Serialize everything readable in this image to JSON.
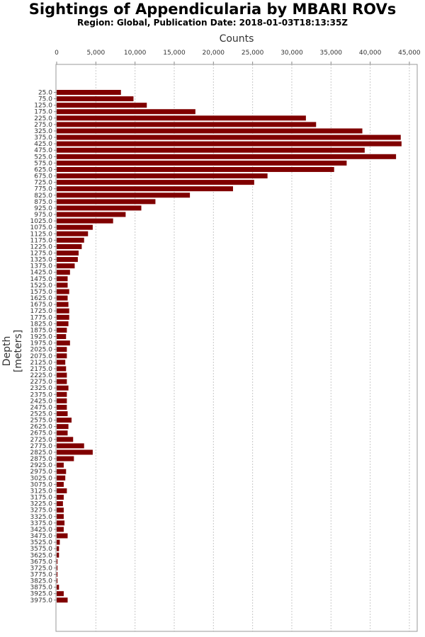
{
  "chart_data": {
    "type": "bar",
    "orientation": "horizontal",
    "title": "Sightings of Appendicularia by MBARI ROVs",
    "subtitle": "Region: Global, Publication Date: 2018-01-03T18:13:35Z",
    "xlabel": "Counts",
    "ylabel": "Depth [meters]",
    "xlim": [
      0,
      46000
    ],
    "x_ticks": [
      0,
      5000,
      10000,
      15000,
      20000,
      25000,
      30000,
      35000,
      40000,
      45000
    ],
    "x_tick_labels": [
      "0",
      "5,000",
      "10,000",
      "15,000",
      "20,000",
      "25,000",
      "30,000",
      "35,000",
      "40,000",
      "45,000"
    ],
    "x_axis_position": "top",
    "grid": "vertical dashed",
    "bar_color": "#800000",
    "categories": [
      "25.0",
      "75.0",
      "125.0",
      "175.0",
      "225.0",
      "275.0",
      "325.0",
      "375.0",
      "425.0",
      "475.0",
      "525.0",
      "575.0",
      "625.0",
      "675.0",
      "725.0",
      "775.0",
      "825.0",
      "875.0",
      "925.0",
      "975.0",
      "1025.0",
      "1075.0",
      "1125.0",
      "1175.0",
      "1225.0",
      "1275.0",
      "1325.0",
      "1375.0",
      "1425.0",
      "1475.0",
      "1525.0",
      "1575.0",
      "1625.0",
      "1675.0",
      "1725.0",
      "1775.0",
      "1825.0",
      "1875.0",
      "1925.0",
      "1975.0",
      "2025.0",
      "2075.0",
      "2125.0",
      "2175.0",
      "2225.0",
      "2275.0",
      "2325.0",
      "2375.0",
      "2425.0",
      "2475.0",
      "2525.0",
      "2575.0",
      "2625.0",
      "2675.0",
      "2725.0",
      "2775.0",
      "2825.0",
      "2875.0",
      "2925.0",
      "2975.0",
      "3025.0",
      "3075.0",
      "3125.0",
      "3175.0",
      "3225.0",
      "3275.0",
      "3325.0",
      "3375.0",
      "3425.0",
      "3475.0",
      "3525.0",
      "3575.0",
      "3625.0",
      "3675.0",
      "3725.0",
      "3775.0",
      "3825.0",
      "3875.0",
      "3925.0",
      "3975.0"
    ],
    "values": [
      8200,
      9800,
      11500,
      17700,
      31800,
      33100,
      39000,
      43900,
      44000,
      39300,
      43300,
      37000,
      35400,
      26900,
      25200,
      22500,
      17000,
      12600,
      10800,
      8800,
      7200,
      4600,
      4000,
      3500,
      3200,
      2800,
      2700,
      2300,
      1700,
      1400,
      1400,
      1600,
      1400,
      1500,
      1600,
      1600,
      1500,
      1300,
      1200,
      1700,
      1300,
      1300,
      1100,
      1200,
      1300,
      1300,
      1500,
      1300,
      1300,
      1300,
      1400,
      1900,
      1500,
      1400,
      2100,
      3500,
      4600,
      2200,
      900,
      1200,
      1100,
      900,
      1300,
      900,
      800,
      900,
      900,
      1000,
      900,
      1400,
      400,
      300,
      300,
      100,
      100,
      100,
      100,
      300,
      900,
      1400
    ]
  }
}
